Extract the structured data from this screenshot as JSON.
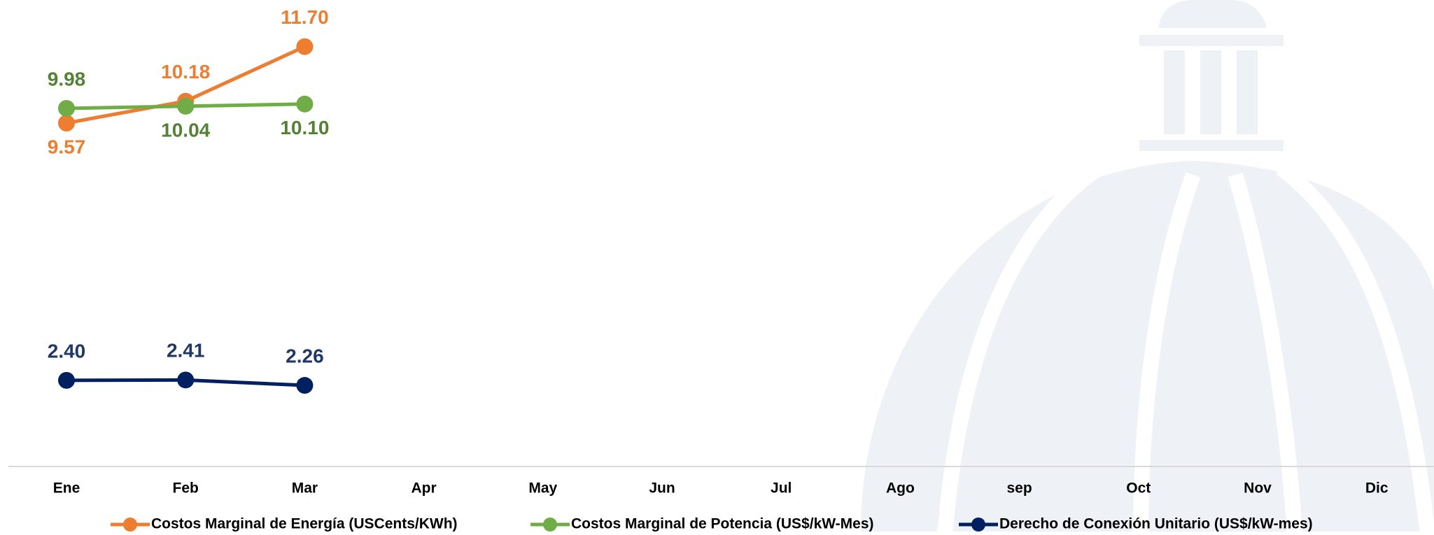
{
  "chart_data": {
    "type": "line",
    "categories": [
      "Ene",
      "Feb",
      "Mar",
      "Apr",
      "May",
      "Jun",
      "Jul",
      "Ago",
      "sep",
      "Oct",
      "Nov",
      "Dic"
    ],
    "ylim": [
      0,
      13
    ],
    "series": [
      {
        "name": "Costos Marginal de Energía (USCents/KWh)",
        "color": "#ED7D31",
        "values": [
          9.57,
          10.18,
          11.7,
          null,
          null,
          null,
          null,
          null,
          null,
          null,
          null,
          null
        ],
        "value_labels": [
          "9.57",
          "10.18",
          "11.70",
          null,
          null,
          null,
          null,
          null,
          null,
          null,
          null,
          null
        ]
      },
      {
        "name": "Costos Marginal de Potencia  (US$/kW-Mes)",
        "color": "#70AD47",
        "values": [
          9.98,
          10.04,
          10.1,
          null,
          null,
          null,
          null,
          null,
          null,
          null,
          null,
          null
        ],
        "value_labels": [
          "9.98",
          "10.04",
          "10.10",
          null,
          null,
          null,
          null,
          null,
          null,
          null,
          null,
          null
        ]
      },
      {
        "name": "Derecho de Conexión Unitario (US$/kW-mes)",
        "color": "#002060",
        "values": [
          2.4,
          2.41,
          2.26,
          null,
          null,
          null,
          null,
          null,
          null,
          null,
          null,
          null
        ],
        "value_labels": [
          "2.40",
          "2.41",
          "2.26",
          null,
          null,
          null,
          null,
          null,
          null,
          null,
          null,
          null
        ]
      }
    ]
  }
}
